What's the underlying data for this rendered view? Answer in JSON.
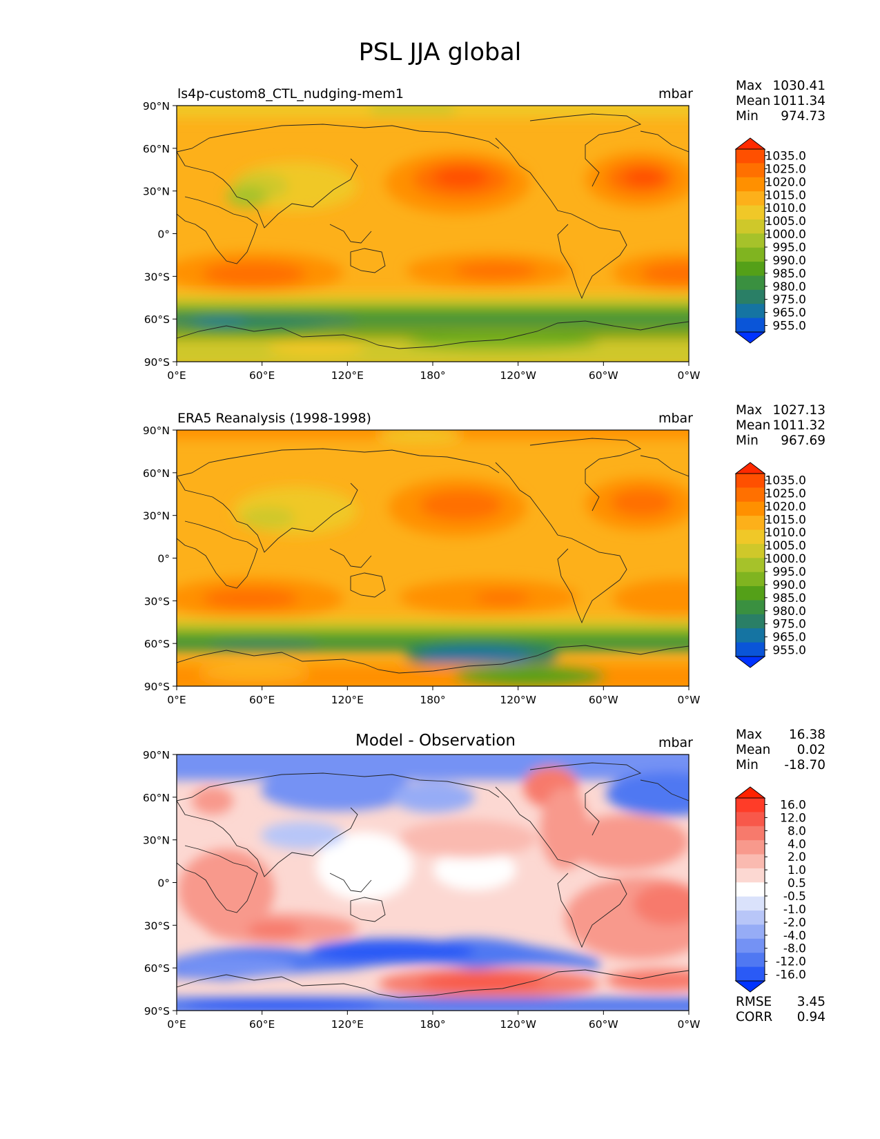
{
  "figure": {
    "title": "PSL JJA global"
  },
  "axes": {
    "lat_ticks": [
      "90°N",
      "60°N",
      "30°N",
      "0°",
      "30°S",
      "60°S",
      "90°S"
    ],
    "lon_ticks": [
      "0°E",
      "60°E",
      "120°E",
      "180°",
      "120°W",
      "60°W",
      "0°W"
    ]
  },
  "panels": [
    {
      "title": "ls4p-custom8_CTL_nudging-mem1",
      "units": "mbar",
      "stats": {
        "max_label": "Max",
        "max": "1030.41",
        "mean_label": "Mean",
        "mean": "1011.34",
        "min_label": "Min",
        "min": "974.73"
      },
      "colorbar": {
        "labels": [
          "1035.0",
          "1025.0",
          "1020.0",
          "1015.0",
          "1010.0",
          "1005.0",
          "1000.0",
          "995.0",
          "990.0",
          "985.0",
          "980.0",
          "975.0",
          "965.0",
          "955.0"
        ],
        "colors": [
          "#ff2a00",
          "#ff5000",
          "#ff7000",
          "#ff9000",
          "#fdb01a",
          "#f0c828",
          "#cfc82a",
          "#a6c22a",
          "#80b420",
          "#54a018",
          "#3a9040",
          "#2a7f66",
          "#1574a2",
          "#0a55d8",
          "#0033ff"
        ]
      }
    },
    {
      "title": "ERA5 Reanalysis (1998-1998)",
      "units": "mbar",
      "stats": {
        "max_label": "Max",
        "max": "1027.13",
        "mean_label": "Mean",
        "mean": "1011.32",
        "min_label": "Min",
        "min": "967.69"
      },
      "colorbar": {
        "labels": [
          "1035.0",
          "1025.0",
          "1020.0",
          "1015.0",
          "1010.0",
          "1005.0",
          "1000.0",
          "995.0",
          "990.0",
          "985.0",
          "980.0",
          "975.0",
          "965.0",
          "955.0"
        ],
        "colors": [
          "#ff2a00",
          "#ff5000",
          "#ff7000",
          "#ff9000",
          "#fdb01a",
          "#f0c828",
          "#cfc82a",
          "#a6c22a",
          "#80b420",
          "#54a018",
          "#3a9040",
          "#2a7f66",
          "#1574a2",
          "#0a55d8",
          "#0033ff"
        ]
      }
    },
    {
      "title": "Model - Observation",
      "units": "mbar",
      "stats": {
        "max_label": "Max",
        "max": "16.38",
        "mean_label": "Mean",
        "mean": "0.02",
        "min_label": "Min",
        "min": "-18.70"
      },
      "colorbar": {
        "labels": [
          "16.0",
          "12.0",
          "8.0",
          "4.0",
          "2.0",
          "1.0",
          "0.5",
          "-0.5",
          "-1.0",
          "-2.0",
          "-4.0",
          "-8.0",
          "-12.0",
          "-16.0"
        ],
        "colors": [
          "#ff2200",
          "#ff3c28",
          "#f8584a",
          "#f77a6c",
          "#f8998c",
          "#fabab0",
          "#fcd8d2",
          "#ffffff",
          "#dae2fb",
          "#b8c6f8",
          "#96acf6",
          "#7492f4",
          "#5078f2",
          "#2a5af6",
          "#0033ff"
        ]
      },
      "metrics": {
        "rmse_label": "RMSE",
        "rmse": "3.45",
        "corr_label": "CORR",
        "corr": "0.94"
      }
    }
  ],
  "field_colors": {
    "psl_ocean": "#fdb01a",
    "diff_neutral": "#fcd8d2"
  }
}
